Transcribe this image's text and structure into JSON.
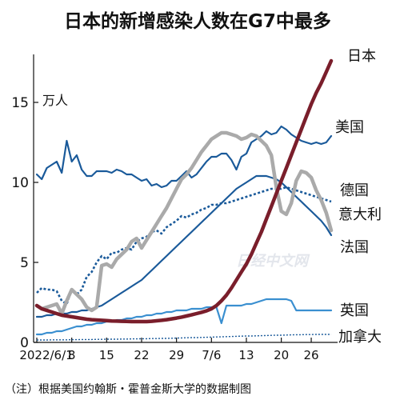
{
  "chart_data": {
    "type": "line",
    "title": "日本的新增感染人数在G7中最多",
    "unit_label": "万人",
    "note": "（注）根据美国约翰斯・霍普金斯大学的数据制图",
    "watermark": "日经中文网",
    "x_ticks": [
      "2022/6/1",
      "8",
      "15",
      "22",
      "29",
      "7/6",
      "13",
      "20",
      "26"
    ],
    "y_ticks": [
      "0",
      "5",
      "10",
      "15"
    ],
    "ylim": [
      0,
      18
    ],
    "grid": false,
    "series": [
      {
        "name": "美国",
        "color": "#1a5a9a",
        "width": 2.2,
        "dash": "",
        "values": [
          10.5,
          10.2,
          10.9,
          11.1,
          11.3,
          10.6,
          12.6,
          11.3,
          11.7,
          10.8,
          10.4,
          10.4,
          10.7,
          10.7,
          10.7,
          10.6,
          10.8,
          10.7,
          10.5,
          10.5,
          10.3,
          10.1,
          10.2,
          9.8,
          9.9,
          9.7,
          9.8,
          10.1,
          10.1,
          10.4,
          10.7,
          10.3,
          10.5,
          10.9,
          11.3,
          11.6,
          11.6,
          11.8,
          11.8,
          11.4,
          10.8,
          11.6,
          11.8,
          12.5,
          12.7,
          12.9,
          13.2,
          13.0,
          13.1,
          13.5,
          13.3,
          13.0,
          12.8,
          12.6,
          12.5,
          12.4,
          12.5,
          12.4,
          12.5,
          12.9
        ]
      },
      {
        "name": "德国",
        "color": "#1a5a9a",
        "width": 2.6,
        "dash": "3,2.5",
        "values": [
          3.1,
          3.4,
          3.3,
          3.3,
          3.2,
          2.6,
          2.4,
          3.3,
          3.0,
          3.3,
          4.1,
          4.4,
          5.0,
          5.4,
          5.2,
          5.6,
          5.6,
          5.8,
          5.9,
          5.8,
          6.3,
          6.5,
          6.6,
          6.9,
          7.0,
          6.8,
          7.2,
          7.4,
          7.6,
          7.9,
          7.8,
          8.0,
          8.1,
          8.3,
          8.4,
          8.6,
          8.6,
          8.7,
          8.7,
          8.8,
          8.9,
          9.0,
          9.1,
          9.2,
          9.3,
          9.4,
          9.5,
          9.6,
          9.6,
          9.6,
          9.7,
          9.6,
          9.5,
          9.4,
          9.3,
          9.2,
          9.1,
          9.0,
          8.9,
          8.8
        ]
      },
      {
        "name": "意大利",
        "color": "#1a5a9a",
        "width": 2.2,
        "dash": "",
        "values": [
          1.6,
          1.6,
          1.7,
          1.7,
          1.8,
          1.8,
          1.8,
          1.9,
          1.9,
          2.0,
          2.0,
          2.1,
          2.2,
          2.3,
          2.5,
          2.7,
          2.9,
          3.1,
          3.3,
          3.5,
          3.7,
          3.9,
          4.2,
          4.5,
          4.8,
          5.1,
          5.4,
          5.7,
          6.0,
          6.3,
          6.6,
          6.9,
          7.2,
          7.5,
          7.8,
          8.1,
          8.4,
          8.7,
          9.0,
          9.3,
          9.6,
          9.8,
          10.0,
          10.2,
          10.4,
          10.4,
          10.4,
          10.3,
          10.2,
          10.0,
          9.7,
          9.4,
          9.1,
          8.8,
          8.5,
          8.2,
          7.9,
          7.6,
          7.2,
          6.7
        ]
      },
      {
        "name": "法国",
        "color": "#aaaaaa",
        "width": 4.5,
        "dash": "",
        "values": [
          2.3,
          2.1,
          2.2,
          2.3,
          2.4,
          1.8,
          2.6,
          3.3,
          3.0,
          2.7,
          2.2,
          2.0,
          2.2,
          4.8,
          4.9,
          4.7,
          5.2,
          5.5,
          5.8,
          6.3,
          6.5,
          5.9,
          6.4,
          6.9,
          7.4,
          7.9,
          8.4,
          9.0,
          9.6,
          10.2,
          10.5,
          10.9,
          11.4,
          11.9,
          12.3,
          12.7,
          12.9,
          13.1,
          13.1,
          13.0,
          12.9,
          12.7,
          12.8,
          13.0,
          12.9,
          12.6,
          12.3,
          11.7,
          9.7,
          8.2,
          8.0,
          8.7,
          10.1,
          10.7,
          10.6,
          10.3,
          9.5,
          8.9,
          8.1,
          7.0
        ]
      },
      {
        "name": "英国",
        "color": "#3a8fd0",
        "width": 2.2,
        "dash": "",
        "values": [
          0.5,
          0.5,
          0.6,
          0.6,
          0.7,
          0.7,
          0.8,
          0.9,
          1.0,
          1.0,
          1.1,
          1.1,
          1.2,
          1.2,
          1.3,
          1.3,
          1.4,
          1.4,
          1.5,
          1.5,
          1.6,
          1.6,
          1.7,
          1.7,
          1.8,
          1.8,
          1.9,
          1.9,
          2.0,
          2.0,
          2.0,
          2.1,
          2.1,
          2.1,
          2.2,
          2.2,
          2.2,
          1.2,
          2.3,
          2.3,
          2.3,
          2.3,
          2.4,
          2.4,
          2.5,
          2.6,
          2.7,
          2.7,
          2.7,
          2.7,
          2.7,
          2.6,
          2.0,
          2.0,
          2.0,
          2.0,
          2.0,
          2.0,
          2.0,
          2.0
        ]
      },
      {
        "name": "加拿大",
        "color": "#1a5a9a",
        "width": 1.4,
        "dash": "2,2",
        "values": [
          0.15,
          0.15,
          0.15,
          0.16,
          0.16,
          0.16,
          0.16,
          0.17,
          0.17,
          0.18,
          0.18,
          0.18,
          0.19,
          0.19,
          0.2,
          0.2,
          0.2,
          0.21,
          0.21,
          0.22,
          0.22,
          0.23,
          0.23,
          0.24,
          0.24,
          0.25,
          0.25,
          0.26,
          0.27,
          0.28,
          0.29,
          0.3,
          0.3,
          0.31,
          0.32,
          0.33,
          0.34,
          0.35,
          0.36,
          0.37,
          0.38,
          0.39,
          0.4,
          0.4,
          0.41,
          0.42,
          0.43,
          0.44,
          0.45,
          0.45,
          0.46,
          0.47,
          0.48,
          0.48,
          0.49,
          0.49,
          0.5,
          0.5,
          0.5,
          0.5
        ]
      },
      {
        "name": "日本",
        "color": "#7a1e2b",
        "width": 4.5,
        "dash": "",
        "values": [
          2.3,
          2.1,
          2.0,
          1.9,
          1.8,
          1.7,
          1.65,
          1.6,
          1.55,
          1.5,
          1.45,
          1.42,
          1.4,
          1.38,
          1.36,
          1.34,
          1.33,
          1.32,
          1.31,
          1.3,
          1.3,
          1.3,
          1.3,
          1.32,
          1.35,
          1.38,
          1.42,
          1.47,
          1.52,
          1.58,
          1.65,
          1.72,
          1.8,
          1.88,
          1.97,
          2.1,
          2.3,
          2.6,
          2.95,
          3.4,
          3.9,
          4.4,
          4.9,
          5.5,
          6.2,
          6.9,
          7.7,
          8.5,
          9.3,
          10.1,
          10.9,
          11.7,
          12.5,
          13.3,
          14.1,
          14.9,
          15.6,
          16.2,
          16.9,
          17.6
        ]
      }
    ]
  }
}
